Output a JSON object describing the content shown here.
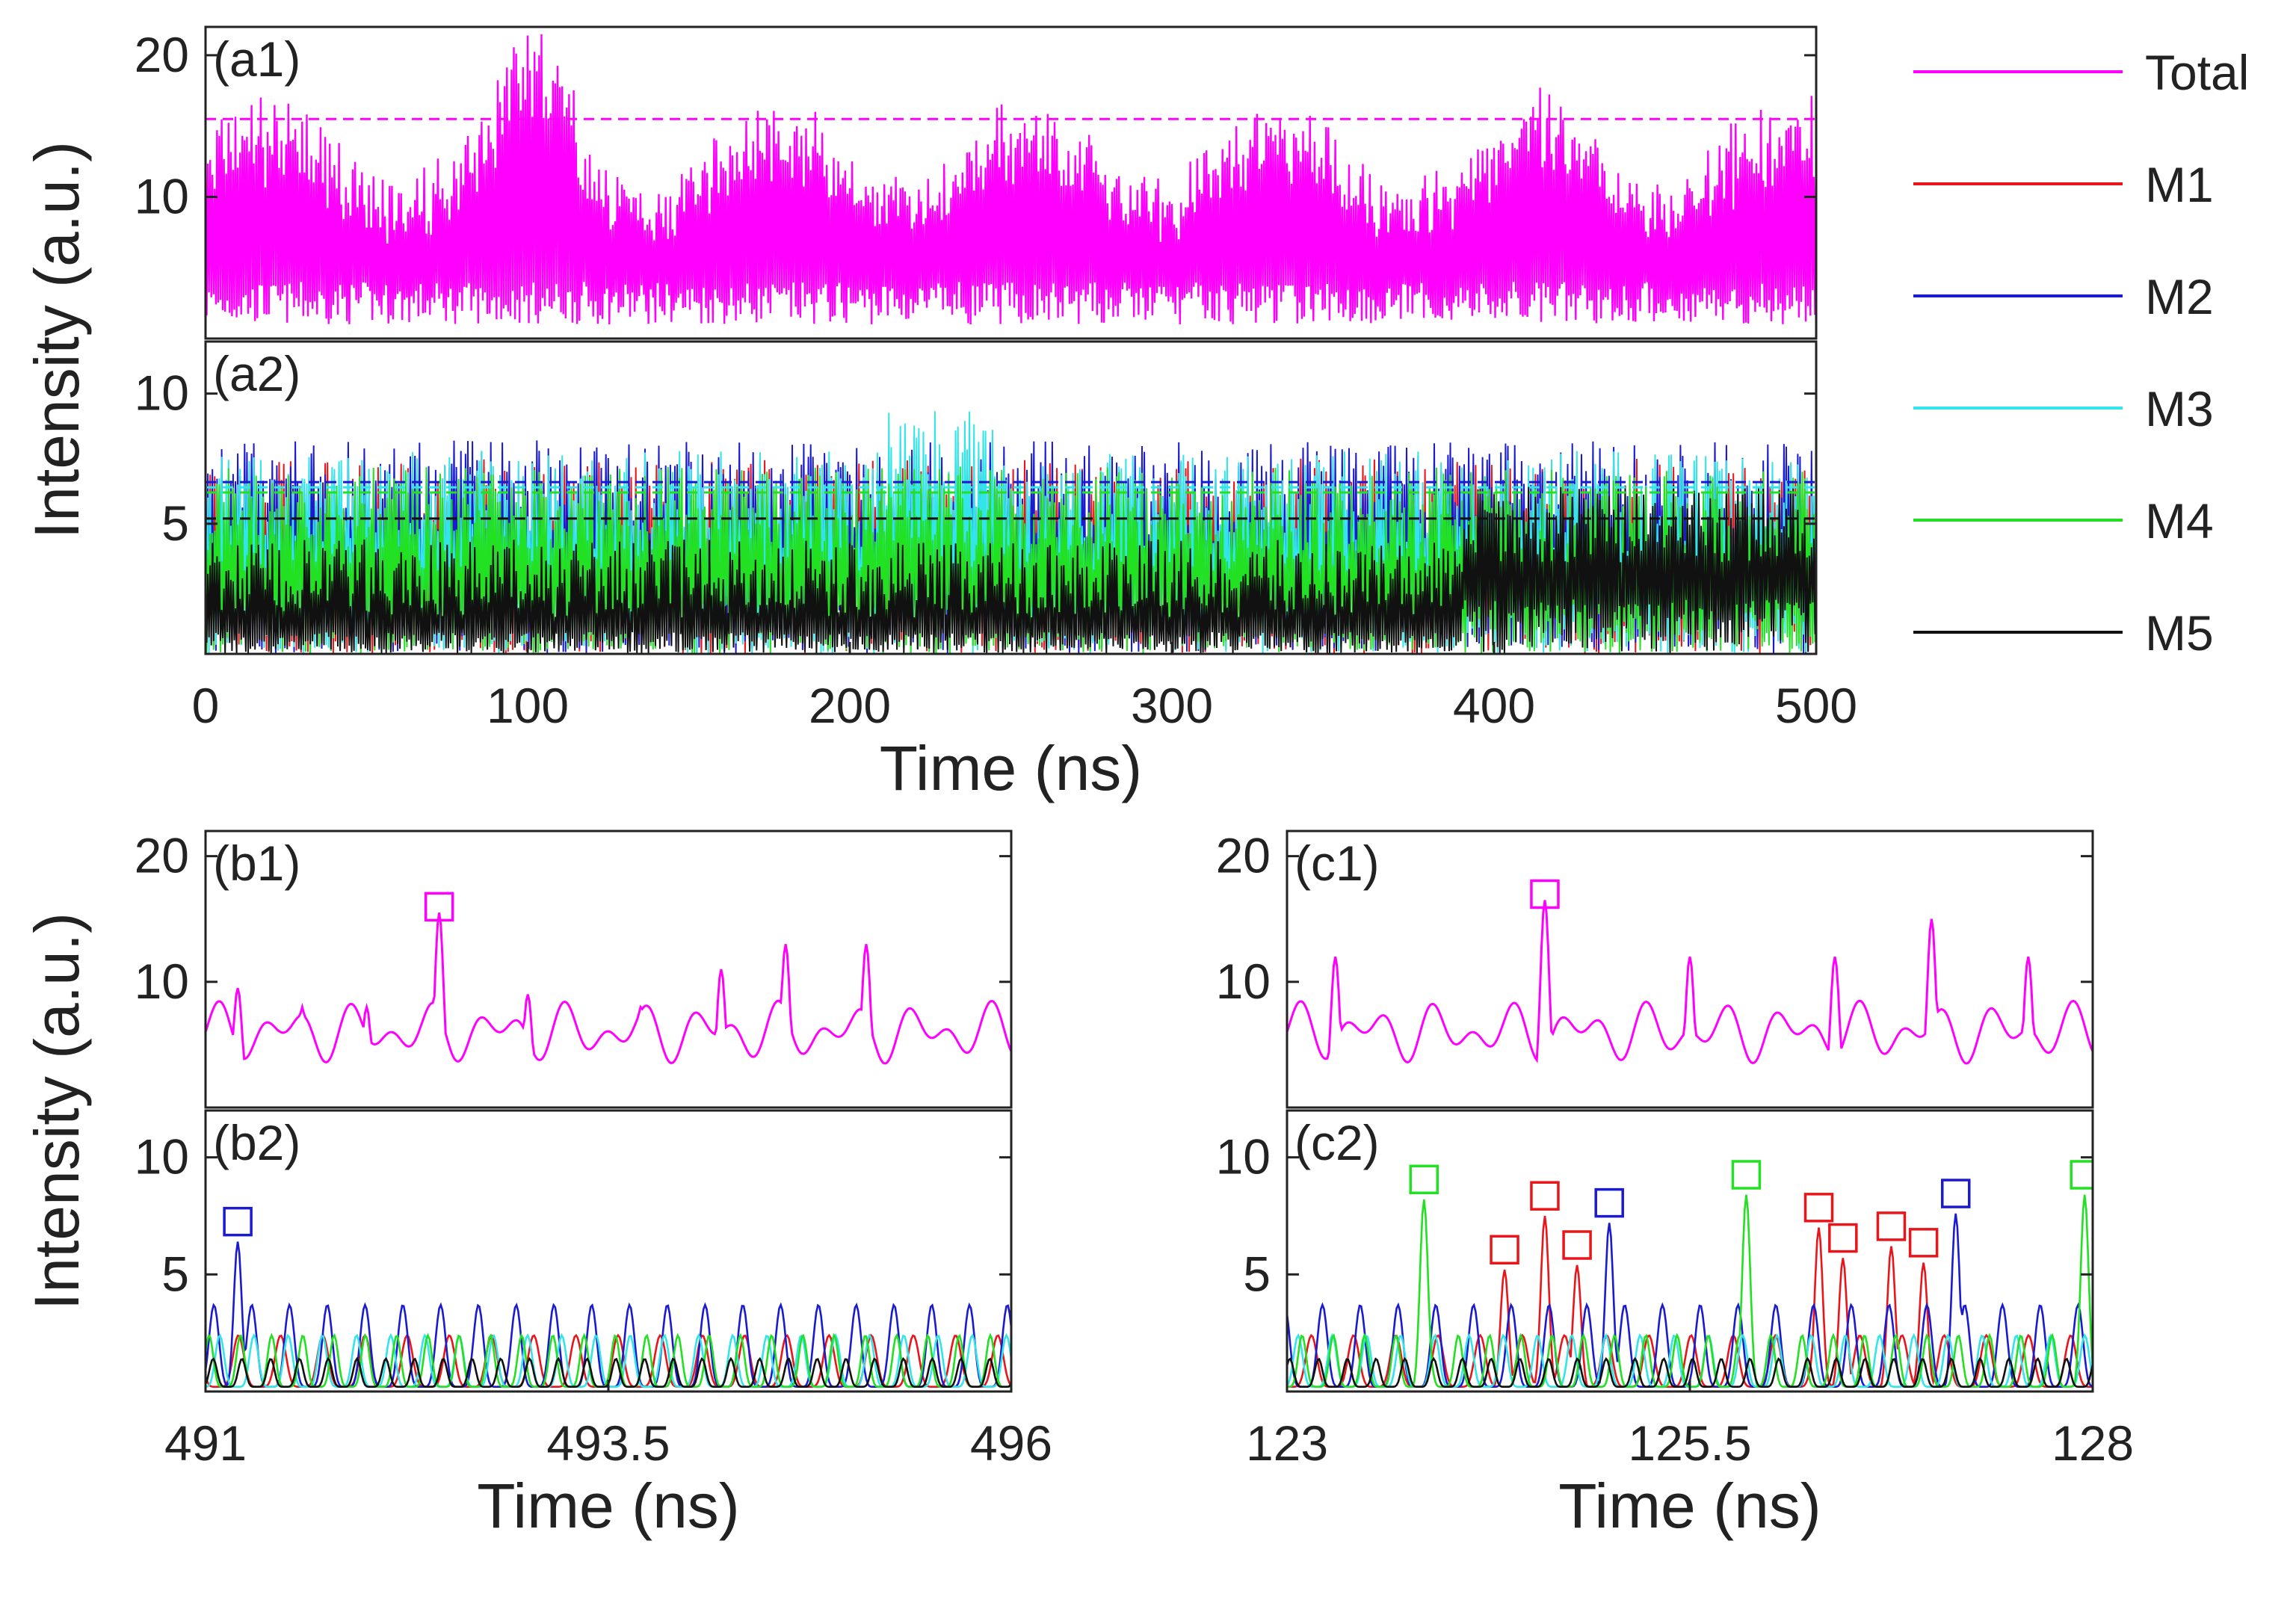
{
  "chart_data": {
    "type": "line",
    "figure_ylabel": "Intensity (a.u.)",
    "legend": {
      "placement": "right",
      "entries": [
        {
          "name": "Total",
          "color": "#ff00ff"
        },
        {
          "name": "M1",
          "color": "#e8161a"
        },
        {
          "name": "M2",
          "color": "#1a1ad0"
        },
        {
          "name": "M3",
          "color": "#33e5e8"
        },
        {
          "name": "M4",
          "color": "#22e022"
        },
        {
          "name": "M5",
          "color": "#111111"
        }
      ]
    },
    "panels": [
      {
        "id": "a1",
        "label": "(a1)",
        "xlim": [
          0,
          500
        ],
        "ylim": [
          0,
          22
        ],
        "yticks": [
          "10",
          "20"
        ],
        "ytick_values": [
          10,
          20
        ],
        "threshold": {
          "y": 15.5,
          "color": "#ff00ff"
        },
        "series": [
          {
            "name": "Total",
            "sampling": "dense oscillation 0-500 ns, envelope ~15-21 max"
          }
        ]
      },
      {
        "id": "a2",
        "label": "(a2)",
        "xlim": [
          0,
          500
        ],
        "ylim": [
          0,
          12
        ],
        "yticks": [
          "5",
          "10"
        ],
        "ytick_values": [
          5,
          10
        ],
        "xticks": [
          "0",
          "100",
          "200",
          "300",
          "400",
          "500"
        ],
        "xtick_values": [
          0,
          100,
          200,
          300,
          400,
          500
        ],
        "xlabel": "Time (ns)",
        "thresholds": [
          {
            "y": 6.6,
            "color": "#1a1ad0"
          },
          {
            "y": 6.4,
            "color": "#33e5e8"
          },
          {
            "y": 6.2,
            "color": "#22e022"
          },
          {
            "y": 5.2,
            "color": "#111111"
          }
        ],
        "series": [
          "M1",
          "M2",
          "M3",
          "M4",
          "M5"
        ]
      },
      {
        "id": "b1",
        "label": "(b1)",
        "xlim": [
          491,
          496
        ],
        "ylim": [
          0,
          22
        ],
        "yticks": [
          "10",
          "20"
        ],
        "ytick_values": [
          10,
          20
        ],
        "markers": [
          {
            "x": 492.45,
            "y": 15.5,
            "color": "#ff00ff"
          }
        ],
        "series": [
          {
            "name": "Total",
            "peaks": [
              [
                491.2,
                9.5
              ],
              [
                491.6,
                8
              ],
              [
                492.0,
                8
              ],
              [
                492.45,
                15.5
              ],
              [
                493.0,
                9
              ],
              [
                493.7,
                8
              ],
              [
                494.2,
                11
              ],
              [
                494.6,
                13
              ],
              [
                495.1,
                13
              ],
              [
                495.6,
                5.5
              ]
            ]
          }
        ]
      },
      {
        "id": "b2",
        "label": "(b2)",
        "xlim": [
          491,
          496
        ],
        "ylim": [
          0,
          12
        ],
        "yticks": [
          "5",
          "10"
        ],
        "ytick_values": [
          5,
          10
        ],
        "xticks": [
          "491",
          "493.5",
          "496"
        ],
        "xtick_values": [
          491,
          493.5,
          496
        ],
        "xlabel": "Time (ns)",
        "markers": [
          {
            "x": 491.2,
            "y": 7.0,
            "color": "#1a1ad0"
          }
        ],
        "series": [
          "M1",
          "M2",
          "M3",
          "M4",
          "M5"
        ]
      },
      {
        "id": "c1",
        "label": "(c1)",
        "xlim": [
          123,
          128
        ],
        "ylim": [
          0,
          22
        ],
        "yticks": [
          "10",
          "20"
        ],
        "ytick_values": [
          10,
          20
        ],
        "markers": [
          {
            "x": 124.6,
            "y": 16.5,
            "color": "#ff00ff"
          }
        ],
        "series": [
          {
            "name": "Total",
            "peaks": [
              [
                123.3,
                12
              ],
              [
                124.6,
                16.5
              ],
              [
                125.5,
                12
              ],
              [
                126.4,
                12
              ],
              [
                127.0,
                15
              ],
              [
                127.6,
                12
              ]
            ]
          }
        ]
      },
      {
        "id": "c2",
        "label": "(c2)",
        "xlim": [
          123,
          128
        ],
        "ylim": [
          0,
          12
        ],
        "yticks": [
          "5",
          "10"
        ],
        "ytick_values": [
          5,
          10
        ],
        "xticks": [
          "123",
          "125.5",
          "128"
        ],
        "xtick_values": [
          123,
          125.5,
          128
        ],
        "xlabel": "Time (ns)",
        "markers": [
          {
            "x": 123.85,
            "y": 8.8,
            "color": "#22e022"
          },
          {
            "x": 124.35,
            "y": 5.8,
            "color": "#e8161a"
          },
          {
            "x": 124.6,
            "y": 8.1,
            "color": "#e8161a"
          },
          {
            "x": 124.8,
            "y": 6.0,
            "color": "#e8161a"
          },
          {
            "x": 125.0,
            "y": 7.8,
            "color": "#1a1ad0"
          },
          {
            "x": 125.85,
            "y": 9.0,
            "color": "#22e022"
          },
          {
            "x": 126.3,
            "y": 7.6,
            "color": "#e8161a"
          },
          {
            "x": 126.45,
            "y": 6.3,
            "color": "#e8161a"
          },
          {
            "x": 126.75,
            "y": 6.8,
            "color": "#e8161a"
          },
          {
            "x": 126.95,
            "y": 6.1,
            "color": "#e8161a"
          },
          {
            "x": 127.15,
            "y": 8.2,
            "color": "#1a1ad0"
          },
          {
            "x": 127.95,
            "y": 9.0,
            "color": "#22e022"
          }
        ],
        "series": [
          "M1",
          "M2",
          "M3",
          "M4",
          "M5"
        ]
      }
    ]
  }
}
